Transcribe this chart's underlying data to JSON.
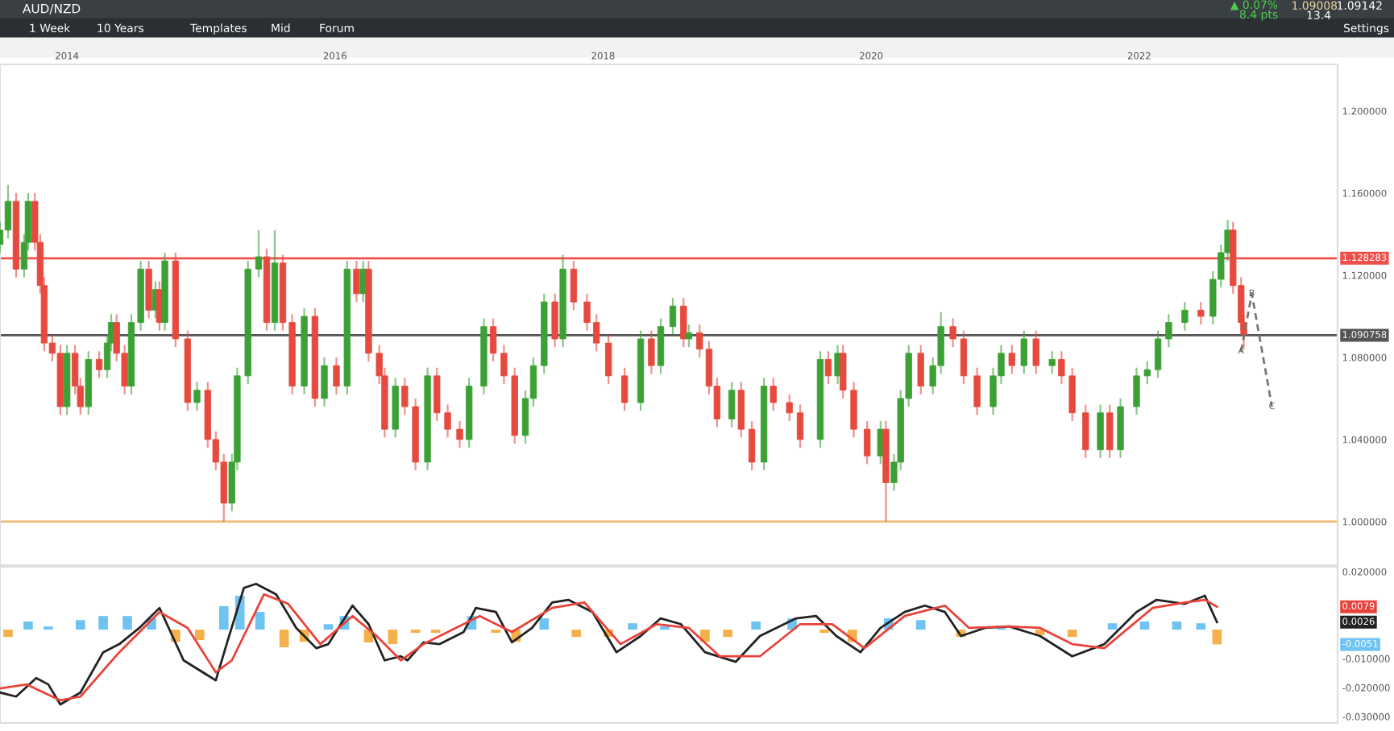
{
  "chart_data": [
    {
      "type": "candlestick",
      "title": "AUD/NZD",
      "annotations": [
        "1 Week",
        "10 Years",
        "Templates",
        "Mid",
        "Forum",
        "Settings",
        "▲ 0.07%",
        "8.4 pts",
        "1.09008",
        "1.09142",
        "13.4",
        {
          "text": "A",
          "x": 2022.76,
          "y": 1.083
        },
        {
          "text": "B",
          "x": 2022.84,
          "y": 1.111
        },
        {
          "text": "C",
          "x": 2022.99,
          "y": 1.056
        }
      ],
      "x": [
        2013.5,
        2013.56,
        2013.62,
        2013.68,
        2013.71,
        2013.76,
        2013.8,
        2013.83,
        2013.89,
        2013.95,
        2014.0,
        2014.06,
        2014.1,
        2014.16,
        2014.24,
        2014.3,
        2014.33,
        2014.37,
        2014.43,
        2014.48,
        2014.55,
        2014.61,
        2014.66,
        2014.69,
        2014.73,
        2014.81,
        2014.9,
        2014.97,
        2015.05,
        2015.11,
        2015.17,
        2015.23,
        2015.27,
        2015.35,
        2015.43,
        2015.49,
        2015.55,
        2015.61,
        2015.68,
        2015.77,
        2015.85,
        2015.92,
        2016.01,
        2016.09,
        2016.16,
        2016.21,
        2016.25,
        2016.33,
        2016.37,
        2016.45,
        2016.52,
        2016.6,
        2016.69,
        2016.76,
        2016.84,
        2016.93,
        2017.0,
        2017.11,
        2017.18,
        2017.26,
        2017.34,
        2017.42,
        2017.48,
        2017.56,
        2017.64,
        2017.7,
        2017.78,
        2017.88,
        2017.95,
        2018.04,
        2018.16,
        2018.28,
        2018.36,
        2018.43,
        2018.52,
        2018.6,
        2018.64,
        2018.72,
        2018.79,
        2018.85,
        2018.96,
        2019.03,
        2019.11,
        2019.2,
        2019.27,
        2019.39,
        2019.47,
        2019.62,
        2019.68,
        2019.75,
        2019.79,
        2019.87,
        2019.97,
        2020.07,
        2020.11,
        2020.17,
        2020.22,
        2020.28,
        2020.37,
        2020.46,
        2020.52,
        2020.61,
        2020.69,
        2020.79,
        2020.91,
        2020.97,
        2021.05,
        2021.14,
        2021.23,
        2021.35,
        2021.42,
        2021.5,
        2021.6,
        2021.71,
        2021.78,
        2021.86,
        2021.98,
        2022.06,
        2022.14,
        2022.22,
        2022.34,
        2022.46,
        2022.55,
        2022.61,
        2022.66,
        2022.7,
        2022.76,
        2022.78
      ],
      "ohlc": [
        [
          1.135,
          1.146,
          1.131,
          1.142
        ],
        [
          1.142,
          1.164,
          1.138,
          1.156
        ],
        [
          1.156,
          1.16,
          1.119,
          1.123
        ],
        [
          1.123,
          1.14,
          1.119,
          1.136
        ],
        [
          1.136,
          1.16,
          1.132,
          1.156
        ],
        [
          1.156,
          1.16,
          1.132,
          1.136
        ],
        [
          1.136,
          1.14,
          1.111,
          1.115
        ],
        [
          1.115,
          1.119,
          1.083,
          1.087
        ],
        [
          1.087,
          1.091,
          1.078,
          1.082
        ],
        [
          1.082,
          1.086,
          1.052,
          1.056
        ],
        [
          1.056,
          1.086,
          1.052,
          1.082
        ],
        [
          1.082,
          1.086,
          1.062,
          1.066
        ],
        [
          1.066,
          1.07,
          1.052,
          1.056
        ],
        [
          1.056,
          1.083,
          1.052,
          1.079
        ],
        [
          1.079,
          1.083,
          1.07,
          1.074
        ],
        [
          1.074,
          1.091,
          1.07,
          1.087
        ],
        [
          1.087,
          1.101,
          1.083,
          1.097
        ],
        [
          1.097,
          1.101,
          1.078,
          1.082
        ],
        [
          1.082,
          1.086,
          1.062,
          1.066
        ],
        [
          1.066,
          1.101,
          1.062,
          1.097
        ],
        [
          1.097,
          1.127,
          1.093,
          1.123
        ],
        [
          1.123,
          1.127,
          1.099,
          1.103
        ],
        [
          1.103,
          1.117,
          1.099,
          1.113
        ],
        [
          1.113,
          1.117,
          1.093,
          1.097
        ],
        [
          1.097,
          1.131,
          1.093,
          1.127
        ],
        [
          1.127,
          1.131,
          1.085,
          1.089
        ],
        [
          1.089,
          1.093,
          1.054,
          1.058
        ],
        [
          1.058,
          1.068,
          1.054,
          1.064
        ],
        [
          1.064,
          1.068,
          1.036,
          1.04
        ],
        [
          1.04,
          1.044,
          1.025,
          1.029
        ],
        [
          1.029,
          1.033,
          1.0,
          1.009
        ],
        [
          1.009,
          1.033,
          1.005,
          1.029
        ],
        [
          1.029,
          1.075,
          1.025,
          1.071
        ],
        [
          1.071,
          1.127,
          1.067,
          1.123
        ],
        [
          1.123,
          1.142,
          1.119,
          1.129
        ],
        [
          1.129,
          1.133,
          1.093,
          1.097
        ],
        [
          1.097,
          1.142,
          1.093,
          1.126
        ],
        [
          1.126,
          1.13,
          1.093,
          1.097
        ],
        [
          1.097,
          1.101,
          1.062,
          1.066
        ],
        [
          1.066,
          1.104,
          1.062,
          1.1
        ],
        [
          1.1,
          1.104,
          1.056,
          1.06
        ],
        [
          1.06,
          1.08,
          1.056,
          1.076
        ],
        [
          1.076,
          1.08,
          1.062,
          1.066
        ],
        [
          1.066,
          1.127,
          1.062,
          1.123
        ],
        [
          1.123,
          1.127,
          1.107,
          1.111
        ],
        [
          1.111,
          1.127,
          1.107,
          1.123
        ],
        [
          1.123,
          1.127,
          1.078,
          1.082
        ],
        [
          1.082,
          1.086,
          1.067,
          1.071
        ],
        [
          1.071,
          1.075,
          1.041,
          1.045
        ],
        [
          1.045,
          1.07,
          1.041,
          1.066
        ],
        [
          1.066,
          1.07,
          1.052,
          1.056
        ],
        [
          1.056,
          1.06,
          1.025,
          1.029
        ],
        [
          1.029,
          1.075,
          1.025,
          1.071
        ],
        [
          1.071,
          1.075,
          1.049,
          1.053
        ],
        [
          1.053,
          1.057,
          1.041,
          1.045
        ],
        [
          1.045,
          1.049,
          1.036,
          1.04
        ],
        [
          1.04,
          1.07,
          1.036,
          1.066
        ],
        [
          1.066,
          1.099,
          1.062,
          1.095
        ],
        [
          1.095,
          1.099,
          1.078,
          1.082
        ],
        [
          1.082,
          1.086,
          1.067,
          1.071
        ],
        [
          1.071,
          1.075,
          1.038,
          1.042
        ],
        [
          1.042,
          1.064,
          1.038,
          1.06
        ],
        [
          1.06,
          1.08,
          1.056,
          1.076
        ],
        [
          1.076,
          1.111,
          1.072,
          1.107
        ],
        [
          1.107,
          1.111,
          1.085,
          1.089
        ],
        [
          1.089,
          1.13,
          1.085,
          1.123
        ],
        [
          1.123,
          1.127,
          1.103,
          1.107
        ],
        [
          1.107,
          1.111,
          1.093,
          1.097
        ],
        [
          1.097,
          1.101,
          1.083,
          1.087
        ],
        [
          1.087,
          1.091,
          1.067,
          1.071
        ],
        [
          1.071,
          1.075,
          1.054,
          1.058
        ],
        [
          1.058,
          1.093,
          1.054,
          1.089
        ],
        [
          1.089,
          1.093,
          1.072,
          1.076
        ],
        [
          1.076,
          1.099,
          1.072,
          1.095
        ],
        [
          1.095,
          1.109,
          1.091,
          1.105
        ],
        [
          1.105,
          1.109,
          1.085,
          1.089
        ],
        [
          1.089,
          1.096,
          1.085,
          1.092
        ],
        [
          1.092,
          1.096,
          1.08,
          1.084
        ],
        [
          1.084,
          1.088,
          1.062,
          1.066
        ],
        [
          1.066,
          1.07,
          1.046,
          1.05
        ],
        [
          1.05,
          1.068,
          1.046,
          1.064
        ],
        [
          1.064,
          1.068,
          1.041,
          1.045
        ],
        [
          1.045,
          1.049,
          1.025,
          1.029
        ],
        [
          1.029,
          1.07,
          1.025,
          1.066
        ],
        [
          1.066,
          1.07,
          1.054,
          1.058
        ],
        [
          1.058,
          1.062,
          1.049,
          1.053
        ],
        [
          1.053,
          1.057,
          1.036,
          1.04
        ],
        [
          1.04,
          1.083,
          1.036,
          1.079
        ],
        [
          1.079,
          1.083,
          1.067,
          1.071
        ],
        [
          1.071,
          1.086,
          1.067,
          1.082
        ],
        [
          1.082,
          1.086,
          1.06,
          1.064
        ],
        [
          1.064,
          1.068,
          1.041,
          1.045
        ],
        [
          1.045,
          1.049,
          1.028,
          1.032
        ],
        [
          1.032,
          1.049,
          1.028,
          1.045
        ],
        [
          1.045,
          1.049,
          1.0,
          1.019
        ],
        [
          1.019,
          1.033,
          1.015,
          1.029
        ],
        [
          1.029,
          1.064,
          1.025,
          1.06
        ],
        [
          1.06,
          1.086,
          1.056,
          1.082
        ],
        [
          1.082,
          1.086,
          1.062,
          1.066
        ],
        [
          1.066,
          1.08,
          1.062,
          1.076
        ],
        [
          1.076,
          1.102,
          1.072,
          1.095
        ],
        [
          1.095,
          1.099,
          1.085,
          1.089
        ],
        [
          1.089,
          1.093,
          1.067,
          1.071
        ],
        [
          1.071,
          1.075,
          1.052,
          1.056
        ],
        [
          1.056,
          1.075,
          1.052,
          1.071
        ],
        [
          1.071,
          1.086,
          1.067,
          1.082
        ],
        [
          1.082,
          1.086,
          1.072,
          1.076
        ],
        [
          1.076,
          1.093,
          1.072,
          1.089
        ],
        [
          1.089,
          1.093,
          1.072,
          1.076
        ],
        [
          1.076,
          1.083,
          1.072,
          1.079
        ],
        [
          1.079,
          1.083,
          1.067,
          1.071
        ],
        [
          1.071,
          1.075,
          1.049,
          1.053
        ],
        [
          1.053,
          1.057,
          1.031,
          1.035
        ],
        [
          1.035,
          1.057,
          1.031,
          1.053
        ],
        [
          1.053,
          1.057,
          1.031,
          1.035
        ],
        [
          1.035,
          1.06,
          1.031,
          1.056
        ],
        [
          1.056,
          1.075,
          1.052,
          1.071
        ],
        [
          1.071,
          1.078,
          1.067,
          1.074
        ],
        [
          1.074,
          1.093,
          1.07,
          1.089
        ],
        [
          1.089,
          1.101,
          1.085,
          1.097
        ],
        [
          1.097,
          1.107,
          1.093,
          1.103
        ],
        [
          1.103,
          1.107,
          1.096,
          1.1
        ],
        [
          1.1,
          1.122,
          1.096,
          1.118
        ],
        [
          1.118,
          1.135,
          1.114,
          1.131
        ],
        [
          1.131,
          1.147,
          1.127,
          1.142
        ],
        [
          1.142,
          1.146,
          1.111,
          1.115
        ],
        [
          1.115,
          1.119,
          1.093,
          1.097
        ],
        [
          1.097,
          1.101,
          1.084,
          1.091
        ]
      ],
      "colors": [
        "#3ca135",
        "#3ca135",
        "#e64a3f",
        "#3ca135",
        "#3ca135",
        "#e64a3f",
        "#e64a3f",
        "#e64a3f",
        "#e64a3f",
        "#e64a3f",
        "#3ca135",
        "#e64a3f",
        "#e64a3f",
        "#3ca135",
        "#e64a3f",
        "#3ca135",
        "#3ca135",
        "#e64a3f",
        "#e64a3f",
        "#3ca135",
        "#3ca135",
        "#e64a3f",
        "#3ca135",
        "#e64a3f",
        "#3ca135",
        "#e64a3f",
        "#e64a3f",
        "#3ca135",
        "#e64a3f",
        "#e64a3f",
        "#e64a3f",
        "#3ca135",
        "#3ca135",
        "#3ca135",
        "#3ca135",
        "#e64a3f",
        "#3ca135",
        "#e64a3f",
        "#e64a3f",
        "#3ca135",
        "#e64a3f",
        "#3ca135",
        "#e64a3f",
        "#3ca135",
        "#e64a3f",
        "#3ca135",
        "#e64a3f",
        "#e64a3f",
        "#e64a3f",
        "#3ca135",
        "#e64a3f",
        "#e64a3f",
        "#3ca135",
        "#e64a3f",
        "#e64a3f",
        "#e64a3f",
        "#3ca135",
        "#3ca135",
        "#e64a3f",
        "#e64a3f",
        "#e64a3f",
        "#3ca135",
        "#3ca135",
        "#3ca135",
        "#e64a3f",
        "#3ca135",
        "#e64a3f",
        "#e64a3f",
        "#e64a3f",
        "#e64a3f",
        "#e64a3f",
        "#3ca135",
        "#e64a3f",
        "#3ca135",
        "#3ca135",
        "#e64a3f",
        "#3ca135",
        "#e64a3f",
        "#e64a3f",
        "#e64a3f",
        "#3ca135",
        "#e64a3f",
        "#e64a3f",
        "#3ca135",
        "#e64a3f",
        "#e64a3f",
        "#e64a3f",
        "#3ca135",
        "#e64a3f",
        "#3ca135",
        "#e64a3f",
        "#e64a3f",
        "#e64a3f",
        "#3ca135",
        "#e64a3f",
        "#3ca135",
        "#3ca135",
        "#3ca135",
        "#e64a3f",
        "#3ca135",
        "#3ca135",
        "#e64a3f",
        "#e64a3f",
        "#e64a3f",
        "#3ca135",
        "#3ca135",
        "#e64a3f",
        "#3ca135",
        "#e64a3f",
        "#3ca135",
        "#e64a3f",
        "#e64a3f",
        "#e64a3f",
        "#3ca135",
        "#e64a3f",
        "#3ca135",
        "#3ca135",
        "#3ca135",
        "#3ca135",
        "#3ca135",
        "#3ca135",
        "#e64a3f",
        "#3ca135",
        "#3ca135",
        "#3ca135",
        "#e64a3f",
        "#e64a3f",
        "#e64a3f"
      ],
      "series": [
        {
          "type": "line",
          "color": "#777777",
          "line_style": "dashed",
          "x": [
            2022.76,
            2022.84,
            2022.99
          ],
          "values": [
            1.083,
            1.111,
            1.056
          ]
        }
      ],
      "ref_lines": [
        {
          "axis": "y",
          "value": 1.128283,
          "label": "1.128283",
          "color": "#f0504a"
        },
        {
          "axis": "y",
          "value": 1.090758,
          "label": "1.090758",
          "color": "#555555"
        },
        {
          "axis": "y",
          "value": 1.0,
          "color": "#f5b870"
        }
      ],
      "xlim": [
        2013.5,
        2023.48
      ],
      "xticks": [
        2014,
        2016,
        2018,
        2020,
        2022
      ],
      "ylim": [
        0.9788,
        1.2227
      ],
      "yticks": [
        {
          "value": 1.0,
          "label": "1.000000"
        },
        {
          "value": 1.04,
          "label": "1.040000"
        },
        {
          "value": 1.08,
          "label": "1.080000"
        },
        {
          "value": 1.12,
          "label": "1.120000"
        },
        {
          "value": 1.16,
          "label": "1.160000"
        },
        {
          "value": 1.2,
          "label": "1.200000"
        }
      ]
    },
    {
      "type": "line",
      "series": [
        {
          "type": "bar",
          "color": "#6fc3f0",
          "x": [
            2013.56,
            2013.71,
            2013.86,
            2014.1,
            2014.27,
            2014.45,
            2014.63,
            2014.81,
            2014.99,
            2015.17,
            2015.29,
            2015.44,
            2015.62,
            2015.77,
            2015.95,
            2016.07,
            2016.25,
            2016.43,
            2016.6,
            2016.75,
            2017.02,
            2017.2,
            2017.35,
            2017.56,
            2017.8,
            2018.04,
            2018.22,
            2018.46,
            2018.76,
            2018.93,
            2019.14,
            2019.41,
            2019.65,
            2019.86,
            2020.13,
            2020.37,
            2020.67,
            2020.97,
            2021.26,
            2021.5,
            2021.8,
            2022.04,
            2022.28,
            2022.46,
            2022.58
          ],
          "values": [
            -0.0025,
            0.0028,
            0.0011,
            0.0033,
            0.0047,
            0.0047,
            0.0039,
            -0.0042,
            -0.0036,
            0.0081,
            0.0117,
            0.0061,
            -0.0061,
            -0.0042,
            0.0019,
            0.0047,
            -0.0044,
            -0.005,
            -0.0011,
            -0.0011,
            0.0047,
            -0.0011,
            -0.0042,
            0.0039,
            -0.0025,
            -0.0025,
            0.0022,
            0.0011,
            -0.0042,
            -0.0025,
            0.0028,
            0.0039,
            -0.0011,
            -0.0042,
            0.0039,
            0.0033,
            -0.0025,
            0.0006,
            -0.0019,
            -0.0025,
            0.0022,
            0.0028,
            0.0028,
            0.0022,
            -0.0051
          ],
          "colors": [
            "#f4b04a",
            "#6fc3f0",
            "#6fc3f0",
            "#6fc3f0",
            "#6fc3f0",
            "#6fc3f0",
            "#6fc3f0",
            "#f4b04a",
            "#f4b04a",
            "#6fc3f0",
            "#6fc3f0",
            "#6fc3f0",
            "#f4b04a",
            "#f4b04a",
            "#6fc3f0",
            "#6fc3f0",
            "#f4b04a",
            "#f4b04a",
            "#f4b04a",
            "#f4b04a",
            "#6fc3f0",
            "#f4b04a",
            "#f4b04a",
            "#6fc3f0",
            "#f4b04a",
            "#f4b04a",
            "#6fc3f0",
            "#6fc3f0",
            "#f4b04a",
            "#f4b04a",
            "#6fc3f0",
            "#6fc3f0",
            "#f4b04a",
            "#f4b04a",
            "#6fc3f0",
            "#6fc3f0",
            "#f4b04a",
            "#6fc3f0",
            "#f4b04a",
            "#f4b04a",
            "#6fc3f0",
            "#6fc3f0",
            "#6fc3f0",
            "#6fc3f0",
            "#f4b04a"
          ]
        },
        {
          "color": "#222222",
          "x": [
            2013.5,
            2013.62,
            2013.77,
            2013.86,
            2013.95,
            2014.1,
            2014.27,
            2014.39,
            2014.54,
            2014.69,
            2014.87,
            2015.11,
            2015.2,
            2015.32,
            2015.41,
            2015.56,
            2015.71,
            2015.86,
            2015.95,
            2016.13,
            2016.25,
            2016.37,
            2016.49,
            2016.54,
            2016.66,
            2016.78,
            2016.96,
            2017.05,
            2017.2,
            2017.32,
            2017.47,
            2017.62,
            2017.74,
            2017.92,
            2018.1,
            2018.28,
            2018.43,
            2018.58,
            2018.76,
            2018.99,
            2019.17,
            2019.44,
            2019.59,
            2019.74,
            2019.92,
            2020.07,
            2020.25,
            2020.4,
            2020.55,
            2020.67,
            2020.85,
            2021.03,
            2021.26,
            2021.5,
            2021.74,
            2021.98,
            2022.13,
            2022.34,
            2022.49,
            2022.58
          ],
          "values": [
            -0.0217,
            -0.0231,
            -0.0167,
            -0.0189,
            -0.0258,
            -0.0217,
            -0.0078,
            -0.005,
            0.0006,
            0.0075,
            -0.0106,
            -0.0175,
            -0.0036,
            0.0144,
            0.0158,
            0.0122,
            0.0006,
            -0.0064,
            -0.005,
            0.0083,
            0.0019,
            -0.0106,
            -0.0092,
            -0.0106,
            -0.0044,
            -0.005,
            -0.0008,
            0.0075,
            0.0061,
            -0.0044,
            0.0006,
            0.0094,
            0.0103,
            0.0061,
            -0.0078,
            -0.0022,
            0.0039,
            0.0019,
            -0.0078,
            -0.0111,
            -0.0022,
            0.0039,
            0.0047,
            -0.0022,
            -0.0078,
            0.0006,
            0.0061,
            0.0083,
            0.0061,
            -0.0022,
            0.0006,
            0.0011,
            -0.0022,
            -0.0092,
            -0.005,
            0.0061,
            0.0103,
            0.0089,
            0.0117,
            0.0026
          ]
        },
        {
          "color": "#e8433a",
          "x": [
            2013.5,
            2013.7,
            2013.95,
            2014.1,
            2014.39,
            2014.69,
            2014.9,
            2015.11,
            2015.23,
            2015.47,
            2015.65,
            2015.89,
            2016.13,
            2016.31,
            2016.49,
            2016.66,
            2017.08,
            2017.32,
            2017.62,
            2017.86,
            2018.13,
            2018.4,
            2018.64,
            2018.87,
            2019.17,
            2019.47,
            2019.71,
            2019.95,
            2020.25,
            2020.55,
            2020.73,
            2021.03,
            2021.26,
            2021.5,
            2021.74,
            2022.1,
            2022.34,
            2022.49,
            2022.58
          ],
          "values": [
            -0.0203,
            -0.0189,
            -0.0244,
            -0.0231,
            -0.0078,
            0.0061,
            0.0006,
            -0.0147,
            -0.0106,
            0.0122,
            0.0089,
            -0.005,
            0.0047,
            -0.0022,
            -0.0106,
            -0.005,
            0.0047,
            -0.0008,
            0.0075,
            0.0094,
            -0.005,
            0.0019,
            0.0006,
            -0.0092,
            -0.0092,
            0.0019,
            0.0019,
            -0.0064,
            0.0047,
            0.0083,
            0.0006,
            0.0011,
            0.0006,
            -0.005,
            -0.0064,
            0.0075,
            0.0094,
            0.0103,
            0.0079
          ]
        }
      ],
      "annotations": [
        "0.0079",
        "0.0026",
        "-0.0051"
      ],
      "xlim": [
        2013.5,
        2023.48
      ],
      "tick_labels": "y",
      "ylim": [
        -0.0322,
        0.0217
      ],
      "yticks": [
        {
          "value": 0.02,
          "label": "0.020000"
        },
        {
          "value": -0.01,
          "label": "-0.010000"
        },
        {
          "value": -0.02,
          "label": "-0.020000"
        },
        {
          "value": -0.03,
          "label": "-0.030000"
        }
      ]
    }
  ]
}
